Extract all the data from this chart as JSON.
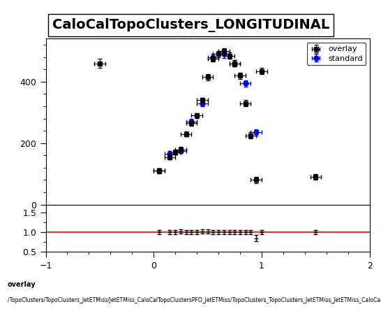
{
  "title": "CaloCalTopoClusters_LONGITUDINAL",
  "title_fontsize": 14,
  "legend_overlay": "overlay",
  "legend_standard": "standard",
  "footer_line1": "overlay",
  "footer_line2": "/TopoClusters/TopoClusters_JetETMiss/JetETMiss_CaloCalTopoClustersPFO_JetETMiss/TopoClusters_TopoClusters_JetETMiss_JetETMiss_CaloCalTopoClustersPFO_JetETMiss_PFO_LONGITUDINAL",
  "main_ylim": [
    0,
    540
  ],
  "main_yticks": [
    0,
    200,
    400
  ],
  "ratio_ylim": [
    0.5,
    1.7
  ],
  "ratio_yticks": [
    0.5,
    1.0,
    1.5
  ],
  "xlim": [
    -1,
    2
  ],
  "xticks": [
    -1,
    0,
    1,
    2
  ],
  "overlay_x": [
    -0.5,
    0.05,
    0.15,
    0.2,
    0.25,
    0.3,
    0.35,
    0.4,
    0.45,
    0.5,
    0.55,
    0.6,
    0.65,
    0.7,
    0.75,
    0.8,
    0.85,
    0.9,
    0.95,
    1.0,
    1.5
  ],
  "overlay_y": [
    460,
    110,
    155,
    170,
    180,
    230,
    265,
    290,
    340,
    415,
    475,
    490,
    500,
    485,
    460,
    420,
    330,
    225,
    80,
    435,
    90
  ],
  "overlay_xerr": [
    0.05,
    0.05,
    0.05,
    0.05,
    0.05,
    0.05,
    0.05,
    0.05,
    0.05,
    0.05,
    0.05,
    0.05,
    0.05,
    0.05,
    0.05,
    0.05,
    0.05,
    0.05,
    0.05,
    0.05,
    0.05
  ],
  "overlay_yerr": [
    15,
    8,
    8,
    8,
    8,
    8,
    8,
    8,
    8,
    10,
    10,
    10,
    10,
    10,
    10,
    10,
    10,
    10,
    10,
    10,
    10
  ],
  "standard_x": [
    0.05,
    0.15,
    0.25,
    0.35,
    0.45,
    0.55,
    0.65,
    0.75,
    0.85,
    0.95
  ],
  "standard_y": [
    110,
    165,
    175,
    270,
    330,
    480,
    490,
    460,
    395,
    235
  ],
  "standard_xerr": [
    0.05,
    0.05,
    0.05,
    0.05,
    0.05,
    0.05,
    0.05,
    0.05,
    0.05,
    0.05
  ],
  "standard_yerr": [
    8,
    10,
    8,
    10,
    10,
    12,
    12,
    10,
    10,
    10
  ],
  "ratio_x": [
    0.05,
    0.15,
    0.2,
    0.25,
    0.3,
    0.35,
    0.4,
    0.45,
    0.5,
    0.55,
    0.6,
    0.65,
    0.7,
    0.75,
    0.8,
    0.85,
    0.9,
    0.95,
    1.0,
    1.5
  ],
  "ratio_y": [
    1.0,
    1.0,
    1.0,
    1.02,
    1.0,
    1.0,
    1.0,
    1.02,
    1.02,
    1.0,
    1.0,
    1.0,
    1.0,
    1.0,
    1.0,
    1.0,
    1.0,
    0.85,
    1.0,
    1.0
  ],
  "ratio_yerr": [
    0.05,
    0.05,
    0.05,
    0.05,
    0.05,
    0.05,
    0.05,
    0.05,
    0.05,
    0.05,
    0.05,
    0.05,
    0.05,
    0.05,
    0.05,
    0.05,
    0.05,
    0.08,
    0.05,
    0.05
  ],
  "overlay_color": "#000000",
  "standard_color": "#0000ff",
  "ratio_color": "#000000",
  "ratio_line_color": "#ff0000",
  "background_color": "#ffffff"
}
